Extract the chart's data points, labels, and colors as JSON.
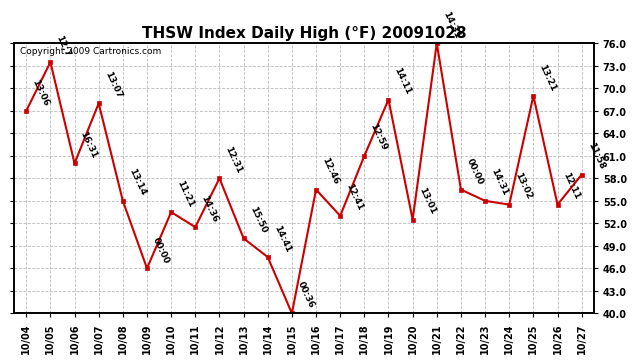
{
  "title": "THSW Index Daily High (°F) 20091028",
  "copyright": "Copyright 2009 Cartronics.com",
  "x_labels": [
    "10/04",
    "10/05",
    "10/06",
    "10/07",
    "10/08",
    "10/09",
    "10/10",
    "10/11",
    "10/12",
    "10/13",
    "10/14",
    "10/15",
    "10/16",
    "10/17",
    "10/18",
    "10/19",
    "10/20",
    "10/21",
    "10/22",
    "10/23",
    "10/24",
    "10/25",
    "10/26",
    "10/27"
  ],
  "y_values": [
    67.0,
    73.5,
    60.0,
    68.0,
    55.0,
    46.0,
    53.5,
    51.5,
    58.0,
    50.0,
    47.5,
    40.0,
    56.5,
    53.0,
    61.0,
    68.5,
    52.5,
    76.0,
    56.5,
    55.0,
    54.5,
    69.0,
    54.5,
    58.5
  ],
  "point_labels": [
    "13:06",
    "12:7",
    "16:31",
    "13:07",
    "13:14",
    "00:00",
    "11:21",
    "14:36",
    "12:31",
    "15:50",
    "14:41",
    "00:36",
    "12:46",
    "12:41",
    "12:59",
    "14:11",
    "13:01",
    "14:31",
    "00:00",
    "14:31",
    "13:02",
    "13:21",
    "12:11",
    "11:58"
  ],
  "ylim_min": 40.0,
  "ylim_max": 76.0,
  "yticks": [
    40.0,
    43.0,
    46.0,
    49.0,
    52.0,
    55.0,
    58.0,
    61.0,
    64.0,
    67.0,
    70.0,
    73.0,
    76.0
  ],
  "line_color": "#cc0000",
  "marker_color": "#cc0000",
  "bg_color": "#ffffff",
  "grid_color": "#bbbbbb",
  "title_fontsize": 11,
  "tick_fontsize": 7,
  "label_fontsize": 6.5,
  "copyright_fontsize": 6.5
}
